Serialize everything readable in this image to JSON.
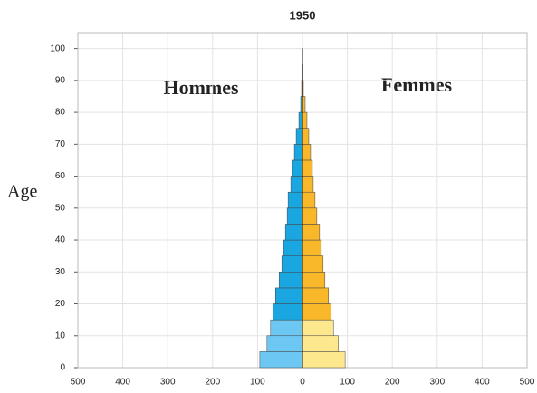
{
  "chart_data": {
    "type": "pyramid",
    "title": "1950",
    "y_label": "Age",
    "annotations": [
      "Hommes",
      "Femmes"
    ],
    "age_bins": [
      0,
      5,
      10,
      15,
      20,
      25,
      30,
      35,
      40,
      45,
      50,
      55,
      60,
      65,
      70,
      75,
      80,
      85,
      90,
      95,
      100
    ],
    "series": [
      {
        "name": "Hommes",
        "side": "left",
        "values": [
          95,
          79,
          71,
          65,
          60,
          52,
          46,
          42,
          38,
          34,
          32,
          26,
          22,
          18,
          14,
          8,
          4,
          2,
          1,
          0.5
        ],
        "colors": [
          "#6cc7f2",
          "#6cc7f2",
          "#6cc7f2",
          "#1aa6e0",
          "#1aa6e0",
          "#1aa6e0",
          "#1aa6e0",
          "#1aa6e0",
          "#1aa6e0",
          "#1aa6e0",
          "#1aa6e0",
          "#1aa6e0",
          "#1aa6e0",
          "#1aa6e0",
          "#1aa6e0",
          "#1aa6e0",
          "#1aa6e0",
          "#1aa6e0",
          "#1aa6e0",
          "#1aa6e0"
        ]
      },
      {
        "name": "Femmes",
        "side": "right",
        "values": [
          95,
          80,
          69,
          63,
          58,
          50,
          46,
          42,
          38,
          32,
          28,
          24,
          22,
          18,
          14,
          10,
          6,
          2,
          1,
          0.5
        ],
        "colors": [
          "#fde88e",
          "#fde88e",
          "#fde88e",
          "#f9b82a",
          "#f9b82a",
          "#f9b82a",
          "#f9b82a",
          "#f9b82a",
          "#f9b82a",
          "#f9b82a",
          "#f9b82a",
          "#f9b82a",
          "#f9b82a",
          "#f9b82a",
          "#f9b82a",
          "#f9b82a",
          "#f9b82a",
          "#f9b82a",
          "#f9b82a",
          "#f9b82a"
        ]
      }
    ],
    "xlim": [
      -500,
      500
    ],
    "xticks": [
      {
        "value": -500,
        "label": "500"
      },
      {
        "value": -400,
        "label": "400"
      },
      {
        "value": -300,
        "label": "300"
      },
      {
        "value": -200,
        "label": "200"
      },
      {
        "value": -100,
        "label": "100"
      },
      0,
      100,
      200,
      300,
      400,
      500
    ],
    "ylim": [
      0,
      105
    ],
    "yticks": [
      0,
      10,
      20,
      30,
      40,
      50,
      60,
      70,
      80,
      90,
      100
    ],
    "grid": true
  }
}
